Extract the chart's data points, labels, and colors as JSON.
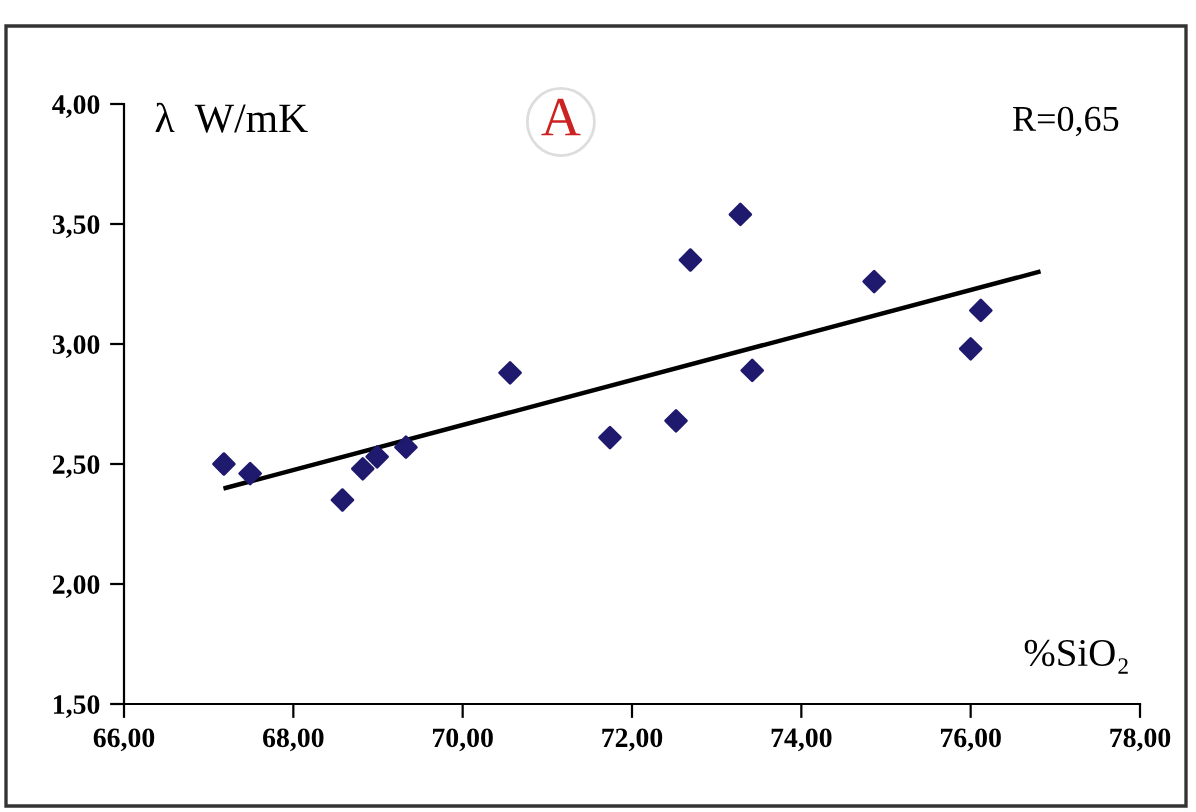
{
  "chart_data": {
    "type": "scatter",
    "ylabel": "λ  W/mK",
    "xlabel": "%SiO₂",
    "annotations": [
      "A",
      "R=0,65"
    ],
    "xlim": [
      66,
      78
    ],
    "ylim": [
      1.5,
      4
    ],
    "xticks": [
      {
        "value": 66,
        "label": "66,00"
      },
      {
        "value": 68,
        "label": "68,00"
      },
      {
        "value": 70,
        "label": "70,00"
      },
      {
        "value": 72,
        "label": "72,00"
      },
      {
        "value": 74,
        "label": "74,00"
      },
      {
        "value": 76,
        "label": "76,00"
      },
      {
        "value": 78,
        "label": "78,00"
      }
    ],
    "yticks": [
      {
        "value": 1.5,
        "label": "1,50"
      },
      {
        "value": 2,
        "label": "2,00"
      },
      {
        "value": 2.5,
        "label": "2,50"
      },
      {
        "value": 3,
        "label": "3,00"
      },
      {
        "value": 3.5,
        "label": "3,50"
      },
      {
        "value": 4,
        "label": "4,00"
      }
    ],
    "grid": false,
    "marker": "diamond",
    "series": [
      {
        "color": "#1f1a6e",
        "x": [
          67.18,
          67.49,
          68.58,
          68.82,
          68.99,
          69.33,
          70.56,
          71.74,
          72.52,
          72.69,
          73.28,
          73.42,
          74.86,
          76.0,
          76.12
        ],
        "values": [
          2.5,
          2.46,
          2.35,
          2.48,
          2.53,
          2.57,
          2.88,
          2.61,
          2.68,
          3.35,
          3.54,
          2.89,
          3.26,
          2.98,
          3.14
        ]
      },
      {
        "type": "line",
        "color": "#000000",
        "line_style": "solid",
        "marker": "none",
        "x": [
          67.2,
          76.8
        ],
        "values": [
          2.4,
          3.3
        ]
      }
    ]
  }
}
